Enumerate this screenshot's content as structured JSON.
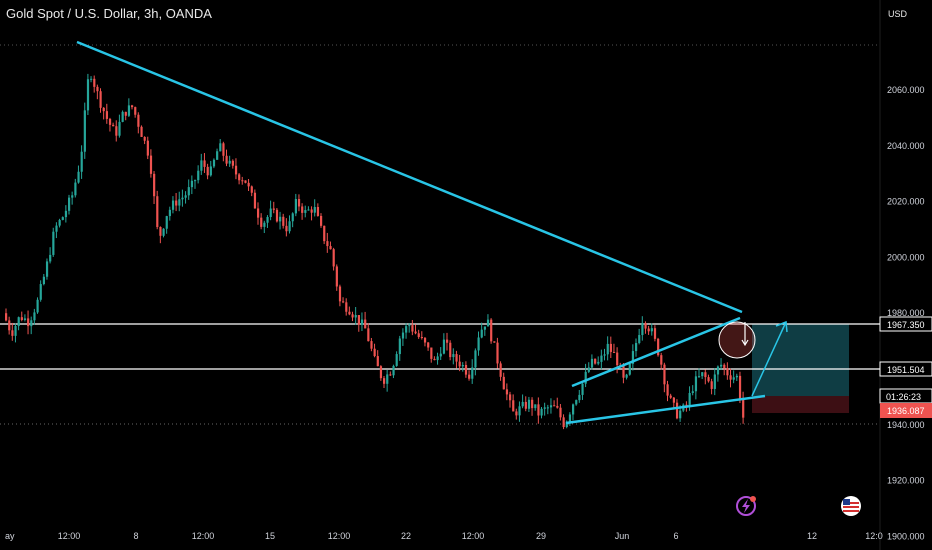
{
  "header": {
    "title": "Gold Spot / U.S. Dollar, 3h, OANDA",
    "currency": "USD"
  },
  "price_tags": {
    "resistance": "1967.350",
    "support": "1951.504",
    "countdown": "01:26:23",
    "last_price": "1936.087"
  },
  "colors": {
    "up": "#26a69a",
    "down": "#ef5350",
    "trendline": "#29c5e6",
    "level": "#ffffff",
    "target_zone": "#0f3d44",
    "stop_zone": "#3d0f14"
  },
  "icons": [
    "lightning-icon",
    "us-flag-icon"
  ],
  "chart_data": {
    "type": "candlestick",
    "title": "Gold Spot / U.S. Dollar, 3h, OANDA",
    "y_axis": {
      "unit": "USD",
      "range": [
        1892,
        2080
      ],
      "ticks": [
        2060,
        2040,
        2020,
        2000,
        1980,
        1960,
        1940,
        1920,
        1900
      ]
    },
    "x_axis": {
      "ticks": [
        "ay",
        "12:00",
        "8",
        "12:00",
        "15",
        "12:00",
        "22",
        "12:00",
        "29",
        "Jun",
        "6",
        "12",
        "12:0"
      ]
    },
    "grid": false,
    "horizontal_levels": [
      1967.35,
      1951.504
    ],
    "last_price": 1936.087,
    "series_path": [
      [
        0,
        1980
      ],
      [
        1,
        1973
      ],
      [
        2,
        1979
      ],
      [
        3,
        1977
      ],
      [
        4,
        1984
      ],
      [
        5,
        1996
      ],
      [
        6,
        2010
      ],
      [
        7,
        2015
      ],
      [
        8,
        2022
      ],
      [
        9,
        2035
      ],
      [
        10,
        2068
      ],
      [
        11,
        2058
      ],
      [
        12,
        2050
      ],
      [
        13,
        2044
      ],
      [
        14,
        2052
      ],
      [
        15,
        2054
      ],
      [
        16,
        2045
      ],
      [
        17,
        2036
      ],
      [
        18,
        2006
      ],
      [
        19,
        2016
      ],
      [
        20,
        2020
      ],
      [
        21,
        2022
      ],
      [
        22,
        2026
      ],
      [
        23,
        2034
      ],
      [
        24,
        2030
      ],
      [
        25,
        2040
      ],
      [
        26,
        2034
      ],
      [
        27,
        2030
      ],
      [
        28,
        2028
      ],
      [
        29,
        2020
      ],
      [
        30,
        2012
      ],
      [
        31,
        2016
      ],
      [
        32,
        2014
      ],
      [
        33,
        2010
      ],
      [
        34,
        2020
      ],
      [
        35,
        2016
      ],
      [
        36,
        2018
      ],
      [
        37,
        2008
      ],
      [
        38,
        2002
      ],
      [
        39,
        1984
      ],
      [
        40,
        1982
      ],
      [
        41,
        1978
      ],
      [
        42,
        1974
      ],
      [
        43,
        1963
      ],
      [
        44,
        1956
      ],
      [
        45,
        1960
      ],
      [
        46,
        1972
      ],
      [
        47,
        1976
      ],
      [
        48,
        1972
      ],
      [
        49,
        1968
      ],
      [
        50,
        1962
      ],
      [
        51,
        1970
      ],
      [
        52,
        1964
      ],
      [
        53,
        1962
      ],
      [
        54,
        1958
      ],
      [
        55,
        1972
      ],
      [
        56,
        1978
      ],
      [
        57,
        1966
      ],
      [
        58,
        1954
      ],
      [
        59,
        1944
      ],
      [
        60,
        1946
      ],
      [
        61,
        1948
      ],
      [
        62,
        1944
      ],
      [
        63,
        1946
      ],
      [
        64,
        1946
      ],
      [
        65,
        1940
      ],
      [
        66,
        1948
      ],
      [
        67,
        1954
      ],
      [
        68,
        1962
      ],
      [
        69,
        1962
      ],
      [
        70,
        1968
      ],
      [
        71,
        1964
      ],
      [
        72,
        1954
      ],
      [
        73,
        1966
      ],
      [
        74,
        1978
      ],
      [
        75,
        1974
      ],
      [
        76,
        1965
      ],
      [
        77,
        1950
      ],
      [
        78,
        1944
      ],
      [
        79,
        1946
      ],
      [
        80,
        1955
      ],
      [
        81,
        1958
      ],
      [
        82,
        1954
      ],
      [
        83,
        1962
      ],
      [
        84,
        1958
      ],
      [
        85,
        1957
      ],
      [
        86,
        1936
      ]
    ],
    "drawings": [
      {
        "type": "trendline",
        "from": [
          "12:00",
          2068
        ],
        "to": [
          "6",
          1970
        ]
      },
      {
        "type": "trendline",
        "from": [
          "29",
          1930
        ],
        "to": [
          "6",
          1939
        ]
      },
      {
        "type": "trendline",
        "from": [
          "29",
          1943
        ],
        "to": [
          "6",
          1967
        ]
      },
      {
        "type": "arrow",
        "from": [
          "6",
          1939
        ],
        "to": [
          "12",
          1969
        ]
      },
      {
        "type": "long_position",
        "entry": 1939,
        "target": 1967.35,
        "stop": 1934.5
      }
    ]
  }
}
